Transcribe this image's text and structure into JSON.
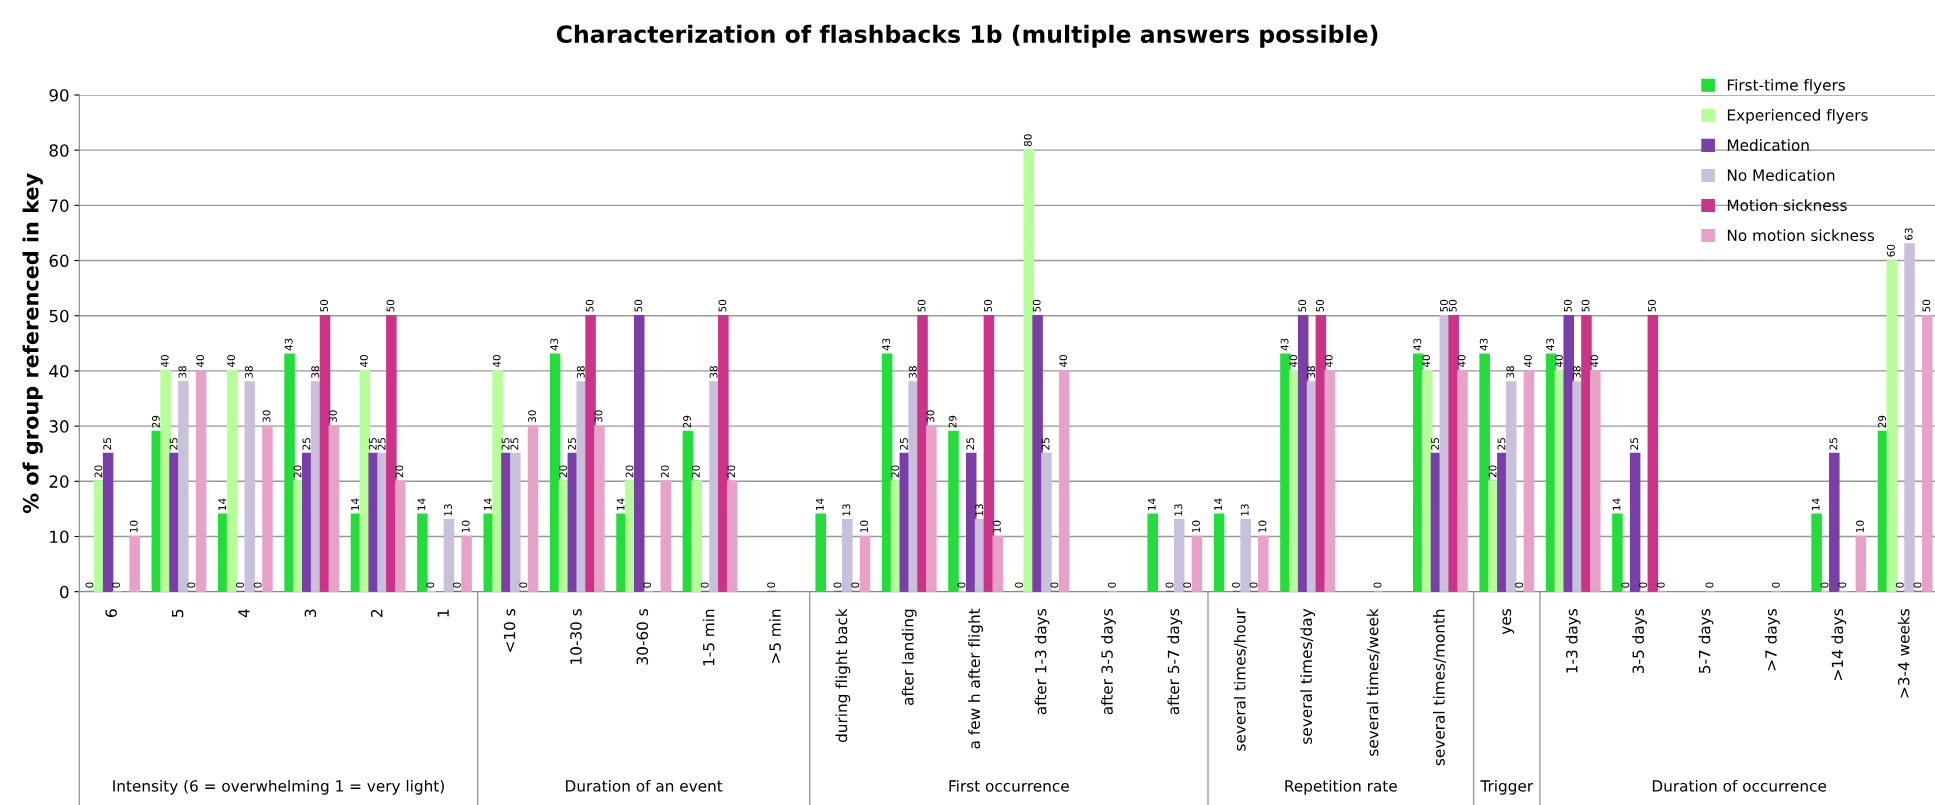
{
  "chart_data": {
    "type": "bar",
    "title": "Characterization of flashbacks 1b (multiple answers possible)",
    "ylabel": "% of group referenced in key",
    "categories": [
      "6",
      "5",
      "4",
      "3",
      "2",
      "1",
      "<10 s",
      "10-30 s",
      "30-60 s",
      "1-5 min",
      ">5 min",
      "during flight back",
      "after landing",
      "a few h after flight",
      "after 1-3 days",
      "after 3-5 days",
      "after 5-7 days",
      "several times/hour",
      "several times/day",
      "several times/week",
      "several times/month",
      "yes",
      "1-3 days",
      "3-5 days",
      "5-7 days",
      ">7 days",
      ">14 days",
      ">3-4 weeks"
    ],
    "series": [
      {
        "name": "First-time flyers",
        "color": "#22dd3a",
        "values": [
          0,
          29,
          14,
          43,
          14,
          14,
          14,
          43,
          14,
          29,
          null,
          14,
          43,
          29,
          0,
          null,
          14,
          14,
          43,
          null,
          43,
          43,
          43,
          14,
          null,
          null,
          14,
          29
        ]
      },
      {
        "name": "Experienced flyers",
        "color": "#b6ff99",
        "values": [
          20,
          40,
          40,
          20,
          40,
          0,
          40,
          20,
          20,
          20,
          null,
          null,
          20,
          0,
          80,
          null,
          null,
          null,
          40,
          null,
          40,
          20,
          40,
          0,
          null,
          null,
          0,
          60
        ]
      },
      {
        "name": "Medication",
        "color": "#7a3ea8",
        "values": [
          25,
          25,
          0,
          25,
          25,
          null,
          25,
          25,
          50,
          0,
          0,
          0,
          25,
          25,
          50,
          null,
          0,
          0,
          50,
          null,
          25,
          25,
          50,
          25,
          null,
          null,
          25,
          0
        ]
      },
      {
        "name": "No Medication",
        "color": "#c9c0dc",
        "values": [
          0,
          38,
          38,
          38,
          25,
          13,
          25,
          38,
          0,
          38,
          null,
          13,
          38,
          13,
          25,
          0,
          13,
          13,
          38,
          0,
          50,
          38,
          38,
          0,
          0,
          0,
          0,
          63
        ]
      },
      {
        "name": "Motion sickness",
        "color": "#cc3388",
        "values": [
          null,
          0,
          0,
          50,
          50,
          0,
          0,
          50,
          null,
          50,
          null,
          0,
          50,
          50,
          0,
          null,
          0,
          0,
          50,
          null,
          50,
          0,
          50,
          50,
          null,
          null,
          null,
          0
        ]
      },
      {
        "name": "No motion sickness",
        "color": "#e8a2c8",
        "values": [
          10,
          40,
          30,
          30,
          20,
          10,
          30,
          30,
          20,
          20,
          null,
          10,
          30,
          10,
          40,
          null,
          10,
          10,
          40,
          null,
          40,
          40,
          40,
          0,
          null,
          null,
          10,
          50
        ]
      }
    ],
    "ylim": [
      0,
      90
    ],
    "yticks": [
      0,
      10,
      20,
      30,
      40,
      50,
      60,
      70,
      80,
      90
    ],
    "grid": "y",
    "legend": "top right",
    "data_labels": true,
    "annotations": [
      "Intensity (6 = overwhelming 1 = very light)",
      "Duration of an event",
      "First occurrence",
      "Repetition rate",
      "Trigger",
      "Duration of occurrence"
    ]
  }
}
